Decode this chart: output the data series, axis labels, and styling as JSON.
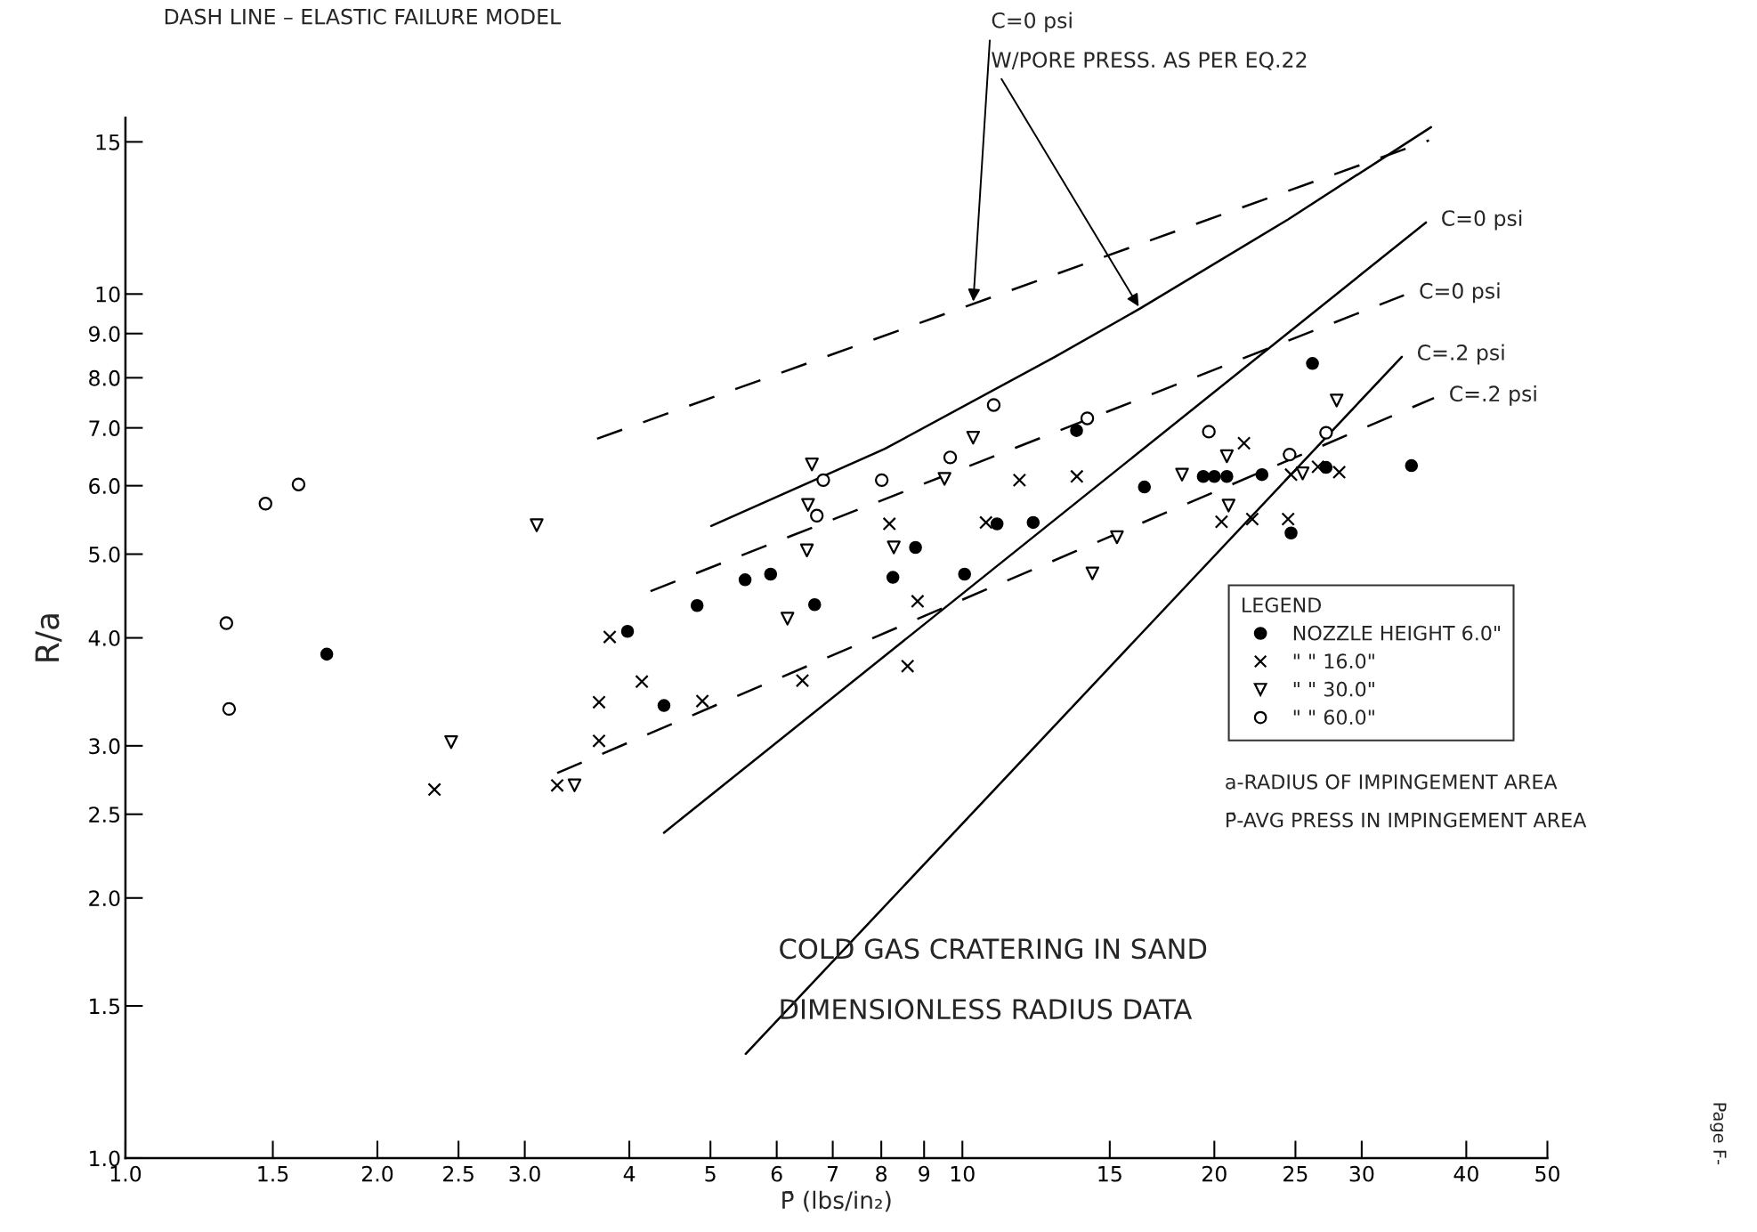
{
  "chart_data": {
    "type": "scatter",
    "title": "DASH LINE – ELASTIC FAILURE MODEL",
    "xlabel": "P̄ (lbs/in₂)",
    "ylabel": "R/a",
    "legend_title": "LEGEND",
    "log": "xy",
    "xlim": [
      1,
      50
    ],
    "ylim": [
      1,
      16
    ],
    "xticks": [
      {
        "value": 1,
        "label": "1.0"
      },
      1.5,
      {
        "value": 2,
        "label": "2.0"
      },
      2.5,
      {
        "value": 3,
        "label": "3.0"
      },
      4,
      5,
      6,
      7,
      8,
      9,
      10,
      15,
      20,
      25,
      30,
      40,
      50
    ],
    "yticks": [
      {
        "value": 1,
        "label": "1.0"
      },
      1.5,
      {
        "value": 2,
        "label": "2.0"
      },
      2.5,
      {
        "value": 3,
        "label": "3.0"
      },
      {
        "value": 4,
        "label": "4.0"
      },
      {
        "value": 5,
        "label": "5.0"
      },
      {
        "value": 6,
        "label": "6.0"
      },
      {
        "value": 7,
        "label": "7.0"
      },
      {
        "value": 8,
        "label": "8.0"
      },
      {
        "value": 9,
        "label": "9.0"
      },
      10,
      15
    ],
    "legend": "bottom right",
    "series": [
      {
        "name": "NOZZLE HEIGHT 6.0\"",
        "color": "#000000",
        "marker": "circle",
        "x": [
          1.74,
          3.98,
          4.4,
          4.82,
          5.5,
          5.9,
          6.66,
          8.26,
          8.79,
          10.06,
          11.0,
          12.15,
          13.69,
          16.5,
          19.4,
          20.0,
          20.7,
          22.8,
          24.7,
          26.2,
          27.2,
          34.4
        ],
        "values": [
          3.83,
          4.07,
          3.34,
          4.36,
          4.67,
          4.74,
          4.37,
          4.7,
          5.09,
          4.74,
          5.42,
          5.44,
          6.95,
          5.98,
          6.15,
          6.15,
          6.15,
          6.18,
          5.29,
          8.31,
          6.3,
          6.33
        ]
      },
      {
        "name": "\" \" 16.0\"",
        "color": "#000000",
        "marker": "cross",
        "x": [
          2.34,
          3.28,
          3.79,
          3.68,
          3.68,
          4.14,
          4.89,
          6.44,
          8.18,
          8.84,
          8.6,
          10.67,
          11.7,
          13.7,
          21.7,
          20.4,
          22.2,
          24.5,
          24.7,
          26.6,
          28.2
        ],
        "values": [
          2.67,
          2.7,
          4.01,
          3.37,
          3.04,
          3.56,
          3.38,
          3.57,
          5.42,
          4.41,
          3.71,
          5.44,
          6.09,
          6.15,
          6.72,
          5.45,
          5.49,
          5.49,
          6.18,
          6.31,
          6.22
        ]
      },
      {
        "name": "\" \" 30.0\"",
        "color": "#000000",
        "marker": "triangle",
        "x": [
          3.1,
          2.45,
          3.44,
          6.61,
          6.54,
          6.52,
          6.18,
          8.28,
          9.52,
          10.3,
          15.3,
          14.3,
          28.0,
          20.7,
          18.3,
          20.8,
          25.5
        ],
        "values": [
          5.4,
          3.03,
          2.7,
          6.35,
          5.7,
          5.05,
          4.21,
          5.09,
          6.11,
          6.82,
          5.23,
          4.75,
          7.53,
          6.49,
          6.18,
          5.69,
          6.2
        ]
      },
      {
        "name": "\" \" 60.0\"",
        "color": "#000000",
        "marker": "circle",
        "x": [
          1.32,
          1.33,
          1.47,
          1.61,
          6.82,
          6.7,
          8.01,
          9.67,
          10.9,
          14.1,
          19.7,
          24.6,
          27.2
        ],
        "values": [
          4.16,
          3.31,
          5.72,
          6.02,
          6.09,
          5.54,
          6.09,
          6.47,
          7.44,
          7.18,
          6.93,
          6.52,
          6.91
        ]
      },
      {
        "type": "line",
        "color": "#000000",
        "line_style": "solid",
        "x": [
          5.01,
          8.08,
          12.9,
          16.3,
          24.5,
          36.3
        ],
        "values": [
          5.39,
          6.62,
          8.46,
          9.62,
          12.2,
          15.6
        ]
      },
      {
        "type": "line",
        "color": "#000000",
        "line_style": "solid",
        "x": [
          4.4,
          35.8
        ],
        "values": [
          2.38,
          12.1
        ]
      },
      {
        "type": "line",
        "color": "#000000",
        "line_style": "solid",
        "x": [
          5.51,
          33.5
        ],
        "values": [
          1.32,
          8.46
        ]
      },
      {
        "type": "line",
        "color": "#000000",
        "line_style": "dashed",
        "x": [
          3.66,
          36.1
        ],
        "values": [
          6.8,
          15.06
        ]
      },
      {
        "type": "line",
        "color": "#000000",
        "line_style": "dashed",
        "x": [
          4.24,
          33.7
        ],
        "values": [
          4.53,
          9.97
        ]
      },
      {
        "type": "line",
        "color": "#000000",
        "line_style": "dashed",
        "x": [
          3.28,
          36.6
        ],
        "values": [
          2.79,
          7.58
        ]
      }
    ],
    "annotations": [
      {
        "text": "C=0 psi",
        "x": 10.3,
        "y": 9.74
      },
      {
        "text": "W/PORE PRESS. AS PER EQ.22",
        "x": 16.3,
        "y": 9.62
      },
      {
        "text": "C=0 psi",
        "x": 35.8,
        "y": 12.1
      },
      {
        "text": "C=0 psi",
        "x": 33.7,
        "y": 9.97
      },
      {
        "text": "C=.2 psi",
        "x": 33.5,
        "y": 8.46
      },
      {
        "text": "C=.2 psi",
        "x": 36.6,
        "y": 7.58
      },
      "COLD GAS CRATERING IN SAND",
      "DIMENSIONLESS RADIUS DATA",
      "a-RADIUS OF IMPINGEMENT AREA",
      "P̄-AVG PRESS IN IMPINGEMENT AREA",
      "Page F-"
    ]
  }
}
